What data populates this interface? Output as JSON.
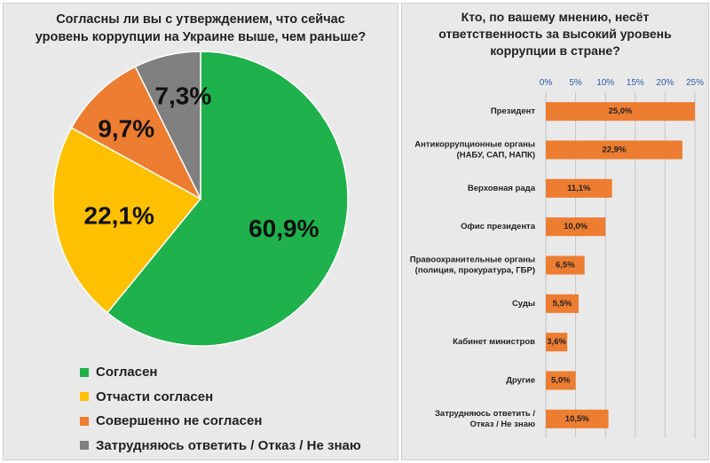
{
  "chart_data": [
    {
      "type": "pie",
      "title_lines": [
        "Согласны ли вы с утверждением, что сейчас",
        "уровень коррупции на Украине выше, чем раньше?"
      ],
      "slices": [
        {
          "name": "Согласен",
          "value": 60.9,
          "label": "60,9%",
          "color": "#1fb14b"
        },
        {
          "name": "Отчасти согласен",
          "value": 22.1,
          "label": "22,1%",
          "color": "#ffc000"
        },
        {
          "name": "Совершенно не согласен",
          "value": 9.7,
          "label": "9,7%",
          "color": "#ed7d31"
        },
        {
          "name": "Затрудняюсь ответить / Отказ / Не знаю",
          "value": 7.3,
          "label": "7,3%",
          "color": "#808080"
        }
      ],
      "legend_position": "bottom-left"
    },
    {
      "type": "bar",
      "orientation": "horizontal",
      "title_lines": [
        "Кто, по вашему мнению, несёт",
        "ответственность за высокий уровень",
        "коррупции в стране?"
      ],
      "categories": [
        [
          "Президент"
        ],
        [
          "Антикоррупционные органы",
          "(НАБУ, САП, НАПК)"
        ],
        [
          "Верховная рада"
        ],
        [
          "Офис президента"
        ],
        [
          "Правоохранительные органы",
          "(полиция, прокуратура, ГБР)"
        ],
        [
          "Суды"
        ],
        [
          "Кабинет министров"
        ],
        [
          "Другие"
        ],
        [
          "Затрудняюсь ответить /",
          "Отказ / Не знаю"
        ]
      ],
      "values": [
        25.0,
        22.9,
        11.1,
        10.0,
        6.5,
        5.5,
        3.6,
        5.0,
        10.5
      ],
      "value_labels": [
        "25,0%",
        "22,9%",
        "11,1%",
        "10,0%",
        "6,5%",
        "5,5%",
        "3,6%",
        "5,0%",
        "10,5%"
      ],
      "xlim": [
        0,
        25
      ],
      "x_ticks": [
        0,
        5,
        10,
        15,
        20,
        25
      ],
      "x_tick_labels": [
        "0%",
        "5%",
        "10%",
        "15%",
        "20%",
        "25%"
      ],
      "x_axis_position": "top",
      "grid": true,
      "bar_color": "#ed7d31"
    }
  ]
}
